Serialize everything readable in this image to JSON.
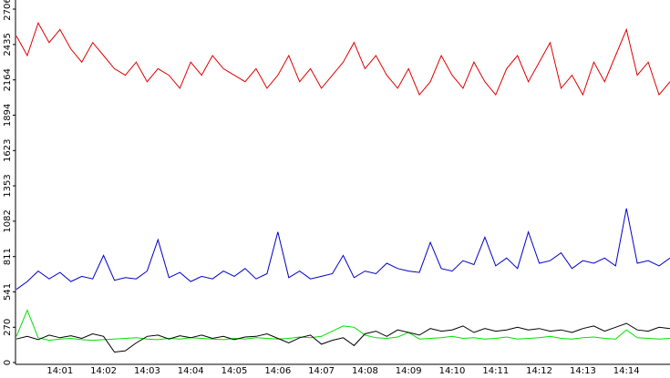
{
  "chart_data": {
    "type": "line",
    "categories": [
      null,
      null,
      null,
      null,
      "14:01",
      null,
      null,
      null,
      "14:02",
      null,
      null,
      null,
      "14:03",
      null,
      null,
      null,
      "14:04",
      null,
      null,
      null,
      "14:05",
      null,
      null,
      null,
      "14:06",
      null,
      null,
      null,
      "14:07",
      null,
      null,
      null,
      "14:08",
      null,
      null,
      null,
      "14:09",
      null,
      null,
      null,
      "14:10",
      null,
      null,
      null,
      "14:11",
      null,
      null,
      null,
      "14:12",
      null,
      null,
      null,
      "14:13",
      null,
      null,
      null,
      "14:14",
      null,
      null,
      null,
      null
    ],
    "series": [
      {
        "color": "#e00000",
        "values": [
          2500,
          2350,
          2600,
          2450,
          2550,
          2400,
          2300,
          2450,
          2350,
          2250,
          2200,
          2300,
          2150,
          2250,
          2200,
          2100,
          2300,
          2200,
          2350,
          2250,
          2200,
          2150,
          2250,
          2100,
          2200,
          2350,
          2150,
          2250,
          2100,
          2200,
          2300,
          2450,
          2250,
          2350,
          2200,
          2100,
          2250,
          2050,
          2150,
          2350,
          2200,
          2100,
          2300,
          2150,
          2050,
          2250,
          2350,
          2150,
          2300,
          2450,
          2100,
          2200,
          2050,
          2300,
          2150,
          2350,
          2550,
          2200,
          2300,
          2050,
          2150
        ]
      },
      {
        "color": "#0000c8",
        "values": [
          560,
          620,
          700,
          640,
          690,
          620,
          660,
          640,
          820,
          630,
          650,
          640,
          700,
          940,
          650,
          690,
          620,
          660,
          640,
          700,
          660,
          720,
          640,
          680,
          1000,
          650,
          700,
          640,
          660,
          680,
          820,
          650,
          700,
          680,
          760,
          720,
          700,
          690,
          920,
          720,
          700,
          780,
          750,
          960,
          740,
          800,
          720,
          1000,
          760,
          780,
          840,
          720,
          780,
          760,
          800,
          740,
          1180,
          760,
          780,
          740,
          800
        ]
      },
      {
        "color": "#00e000",
        "values": [
          200,
          400,
          190,
          170,
          180,
          185,
          175,
          170,
          175,
          180,
          185,
          190,
          180,
          175,
          185,
          180,
          190,
          185,
          180,
          175,
          185,
          180,
          190,
          185,
          180,
          185,
          195,
          190,
          200,
          240,
          280,
          270,
          210,
          190,
          185,
          195,
          230,
          180,
          185,
          190,
          200,
          185,
          190,
          180,
          185,
          195,
          180,
          185,
          190,
          200,
          185,
          180,
          190,
          195,
          185,
          180,
          250,
          190,
          185,
          180,
          185
        ]
      },
      {
        "color": "#000000",
        "values": [
          180,
          200,
          175,
          210,
          190,
          205,
          185,
          220,
          200,
          80,
          90,
          150,
          200,
          210,
          180,
          205,
          190,
          210,
          185,
          200,
          175,
          195,
          200,
          220,
          185,
          150,
          190,
          210,
          140,
          170,
          190,
          130,
          220,
          240,
          200,
          250,
          230,
          210,
          260,
          240,
          250,
          280,
          230,
          260,
          240,
          250,
          270,
          250,
          260,
          240,
          250,
          230,
          260,
          280,
          240,
          270,
          300,
          250,
          240,
          270,
          260
        ]
      }
    ],
    "ylim": [
      0,
      2706
    ],
    "yticks": [
      0,
      270,
      541,
      811,
      1082,
      1353,
      1623,
      1894,
      2164,
      2435,
      2706
    ]
  }
}
